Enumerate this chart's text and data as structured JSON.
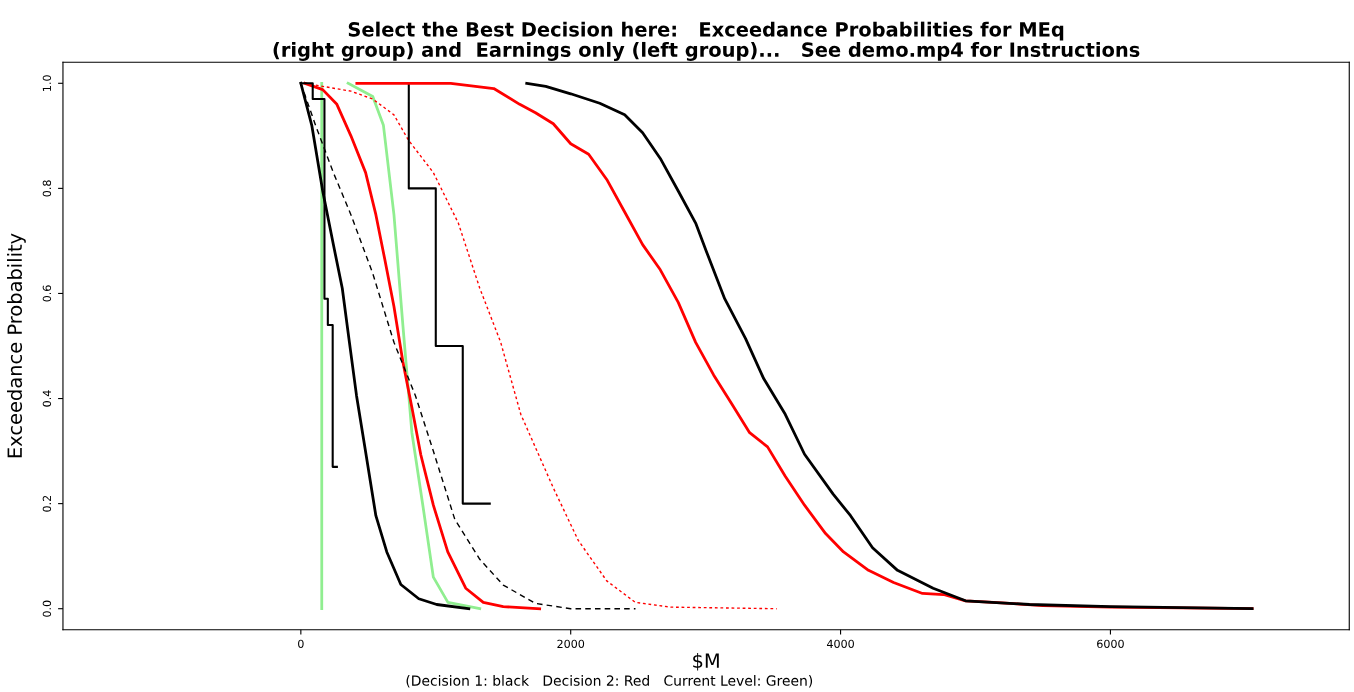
{
  "chart_data": {
    "type": "line",
    "title": "Select the Best Decision here:   Exceedance Probabilities for MEq\n(right group) and  Earnings only (left group)...   See demo.mp4 for Instructions",
    "xlabel": "$M",
    "ylabel": "Exceedance Probability",
    "annotations": [
      "(Decision 1: black   Decision 2: Red   Current Level: Green)"
    ],
    "xlim": [
      -1763,
      7770
    ],
    "ylim": [
      -0.04,
      1.04
    ],
    "xticks": [
      0,
      2000,
      4000,
      6000
    ],
    "yticks": [
      {
        "value": 0,
        "label": "0.0"
      },
      {
        "value": 0.2,
        "label": "0.2"
      },
      {
        "value": 0.4,
        "label": "0.4"
      },
      {
        "value": 0.6,
        "label": "0.6"
      },
      {
        "value": 0.8,
        "label": "0.8"
      },
      {
        "value": 1,
        "label": "1.0"
      }
    ],
    "grid": false,
    "legend": false,
    "series": [
      {
        "color": "#90ee90",
        "line_style": "solid",
        "x": [
          155,
          155
        ],
        "values": [
          0,
          1
        ]
      },
      {
        "color": "#90ee90",
        "line_style": "solid",
        "x": [
          350,
          533,
          612,
          690,
          756,
          823,
          904,
          982,
          1090,
          1326
        ],
        "values": [
          1,
          0.975,
          0.92,
          0.75,
          0.54,
          0.335,
          0.197,
          0.06,
          0.012,
          0
        ]
      },
      {
        "color": "#000000",
        "line_style": "solid",
        "x": [
          0,
          81,
          162,
          241,
          307,
          360,
          413,
          479,
          556,
          637,
          741,
          874,
          1007,
          1245
        ],
        "values": [
          1,
          0.92,
          0.795,
          0.693,
          0.61,
          0.507,
          0.405,
          0.3,
          0.177,
          0.108,
          0.046,
          0.019,
          0.008,
          0
        ]
      },
      {
        "color": "#ff0000",
        "line_style": "solid",
        "x": [
          30,
          162,
          267,
          371,
          480,
          556,
          622,
          690,
          756,
          823,
          889,
          982,
          1089,
          1222,
          1352,
          1500,
          1770
        ],
        "values": [
          1,
          0.988,
          0.96,
          0.9,
          0.83,
          0.75,
          0.665,
          0.575,
          0.47,
          0.383,
          0.293,
          0.197,
          0.108,
          0.039,
          0.012,
          0.004,
          0
        ]
      },
      {
        "color": "#000000",
        "line_style": "dashed",
        "x": [
          0,
          109,
          241,
          371,
          533,
          690,
          850,
          982,
          1141,
          1326,
          1500,
          1739,
          2000,
          2480
        ],
        "values": [
          1,
          0.92,
          0.83,
          0.75,
          0.638,
          0.507,
          0.405,
          0.3,
          0.17,
          0.094,
          0.045,
          0.01,
          0,
          0
        ]
      },
      {
        "color": "#ff0000",
        "line_style": "dotted",
        "x": [
          30,
          371,
          533,
          690,
          797,
          982,
          1167,
          1326,
          1481,
          1630,
          1871,
          2056,
          2267,
          2479,
          2741,
          3526
        ],
        "values": [
          1,
          0.985,
          0.97,
          0.94,
          0.892,
          0.83,
          0.734,
          0.61,
          0.507,
          0.37,
          0.23,
          0.13,
          0.053,
          0.012,
          0.003,
          0
        ]
      },
      {
        "type": "step",
        "color": "#000000",
        "line_style": "solid",
        "x": [
          0,
          88,
          175,
          200,
          236,
          267
        ],
        "values": [
          1,
          0.97,
          0.59,
          0.54,
          0.27,
          0.27
        ]
      },
      {
        "type": "step",
        "color": "#000000",
        "line_style": "solid",
        "x": [
          800,
          800,
          1000,
          1200,
          1400
        ],
        "values": [
          1,
          0.8,
          0.5,
          0.2,
          0.2
        ]
      },
      {
        "color": "#ff0000",
        "line_style": "solid",
        "x": [
          415,
          1111,
          1430,
          1622,
          1739,
          1871,
          2000,
          2133,
          2267,
          2400,
          2533,
          2664,
          2797,
          2926,
          3059,
          3193,
          3326,
          3459,
          3590,
          3733,
          3889,
          4022,
          4207,
          4393,
          4607,
          4763,
          4926,
          5133,
          5500,
          6000,
          7050
        ],
        "values": [
          1,
          1,
          0.99,
          0.96,
          0.944,
          0.923,
          0.885,
          0.865,
          0.817,
          0.755,
          0.693,
          0.645,
          0.583,
          0.507,
          0.445,
          0.39,
          0.335,
          0.308,
          0.252,
          0.197,
          0.143,
          0.108,
          0.073,
          0.05,
          0.029,
          0.027,
          0.015,
          0.012,
          0.006,
          0.003,
          0
        ]
      },
      {
        "color": "#000000",
        "line_style": "solid",
        "x": [
          1674,
          1815,
          2000,
          2215,
          2400,
          2533,
          2664,
          2797,
          2926,
          3007,
          3141,
          3296,
          3430,
          3590,
          3733,
          3945,
          4074,
          4237,
          4422,
          4686,
          4926,
          5400,
          6000,
          7050
        ],
        "values": [
          1,
          0.994,
          0.98,
          0.962,
          0.94,
          0.906,
          0.857,
          0.795,
          0.734,
          0.679,
          0.59,
          0.514,
          0.438,
          0.37,
          0.294,
          0.218,
          0.177,
          0.116,
          0.073,
          0.039,
          0.015,
          0.008,
          0.004,
          0
        ]
      }
    ]
  }
}
